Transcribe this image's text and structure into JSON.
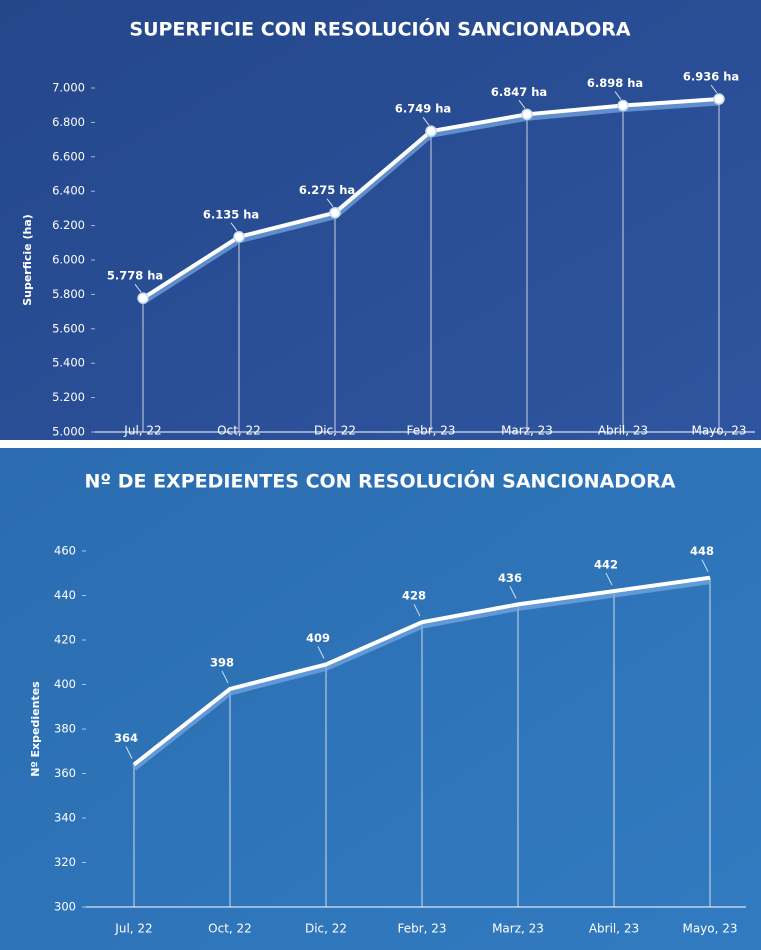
{
  "chart_data": [
    {
      "type": "line",
      "title": "SUPERFICIE CON RESOLUCIÓN SANCIONADORA",
      "y_label": "Superficie (ha)",
      "categories": [
        "Jul, 22",
        "Oct, 22",
        "Dic, 22",
        "Febr, 23",
        "Marz, 23",
        "Abril, 23",
        "Mayo, 23"
      ],
      "values": [
        5778,
        6135,
        6275,
        6749,
        6847,
        6898,
        6936
      ],
      "value_labels": [
        "5.778 ha",
        "6.135 ha",
        "6.275 ha",
        "6.749 ha",
        "6.847 ha",
        "6.898 ha",
        "6.936 ha"
      ],
      "color": "#ffffff",
      "markers": true,
      "ylim": [
        5000,
        7000
      ],
      "yticks": [
        {
          "value": 5000,
          "label": "5.000"
        },
        {
          "value": 5200,
          "label": "5.200"
        },
        {
          "value": 5400,
          "label": "5.400"
        },
        {
          "value": 5600,
          "label": "5.600"
        },
        {
          "value": 5800,
          "label": "5.800"
        },
        {
          "value": 6000,
          "label": "6.000"
        },
        {
          "value": 6200,
          "label": "6.200"
        },
        {
          "value": 6400,
          "label": "6.400"
        },
        {
          "value": 6600,
          "label": "6.600"
        },
        {
          "value": 6800,
          "label": "6.800"
        },
        {
          "value": 7000,
          "label": "7.000"
        }
      ]
    },
    {
      "type": "line",
      "title": "Nº DE EXPEDIENTES CON RESOLUCIÓN SANCIONADORA",
      "y_label": "Nº Expedientes",
      "categories": [
        "Jul, 22",
        "Oct, 22",
        "Dic, 22",
        "Febr, 23",
        "Marz, 23",
        "Abril, 23",
        "Mayo, 23"
      ],
      "values": [
        364,
        398,
        409,
        428,
        436,
        442,
        448
      ],
      "color": "#ffffff",
      "markers": false,
      "ylim": [
        300,
        460
      ],
      "yticks": [
        300,
        320,
        340,
        360,
        380,
        400,
        420,
        440,
        460
      ]
    }
  ]
}
